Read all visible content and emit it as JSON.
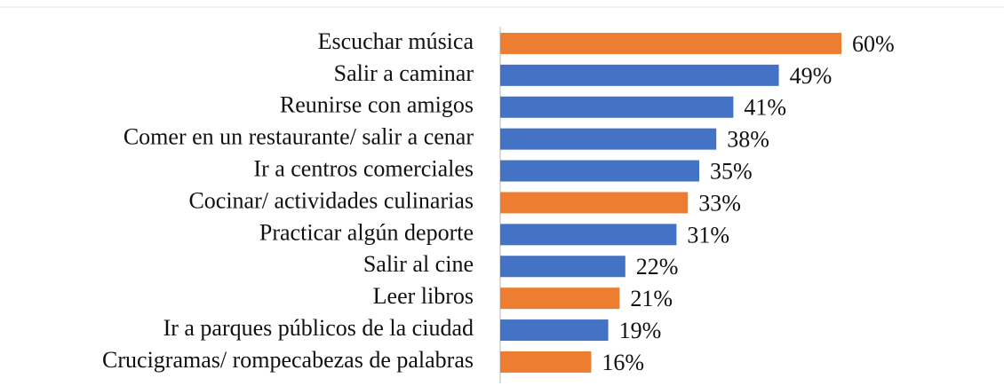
{
  "chart_data": {
    "type": "bar",
    "orientation": "horizontal",
    "categories": [
      "Escuchar música",
      "Salir a caminar",
      "Reunirse con amigos",
      "Comer en un restaurante/ salir a cenar",
      "Ir a centros comerciales",
      "Cocinar/ actividades culinarias",
      "Practicar algún deporte",
      "Salir al cine",
      "Leer libros",
      "Ir a parques públicos de la ciudad",
      "Crucigramas/ rompecabezas de palabras"
    ],
    "values": [
      60,
      49,
      41,
      38,
      35,
      33,
      31,
      22,
      21,
      19,
      16
    ],
    "value_labels": [
      "60%",
      "49%",
      "41%",
      "38%",
      "35%",
      "33%",
      "31%",
      "22%",
      "21%",
      "19%",
      "16%"
    ],
    "colors": [
      "#ed7d31",
      "#4472c4",
      "#4472c4",
      "#4472c4",
      "#4472c4",
      "#ed7d31",
      "#4472c4",
      "#4472c4",
      "#ed7d31",
      "#4472c4",
      "#ed7d31"
    ],
    "xlim": [
      0,
      70
    ]
  }
}
